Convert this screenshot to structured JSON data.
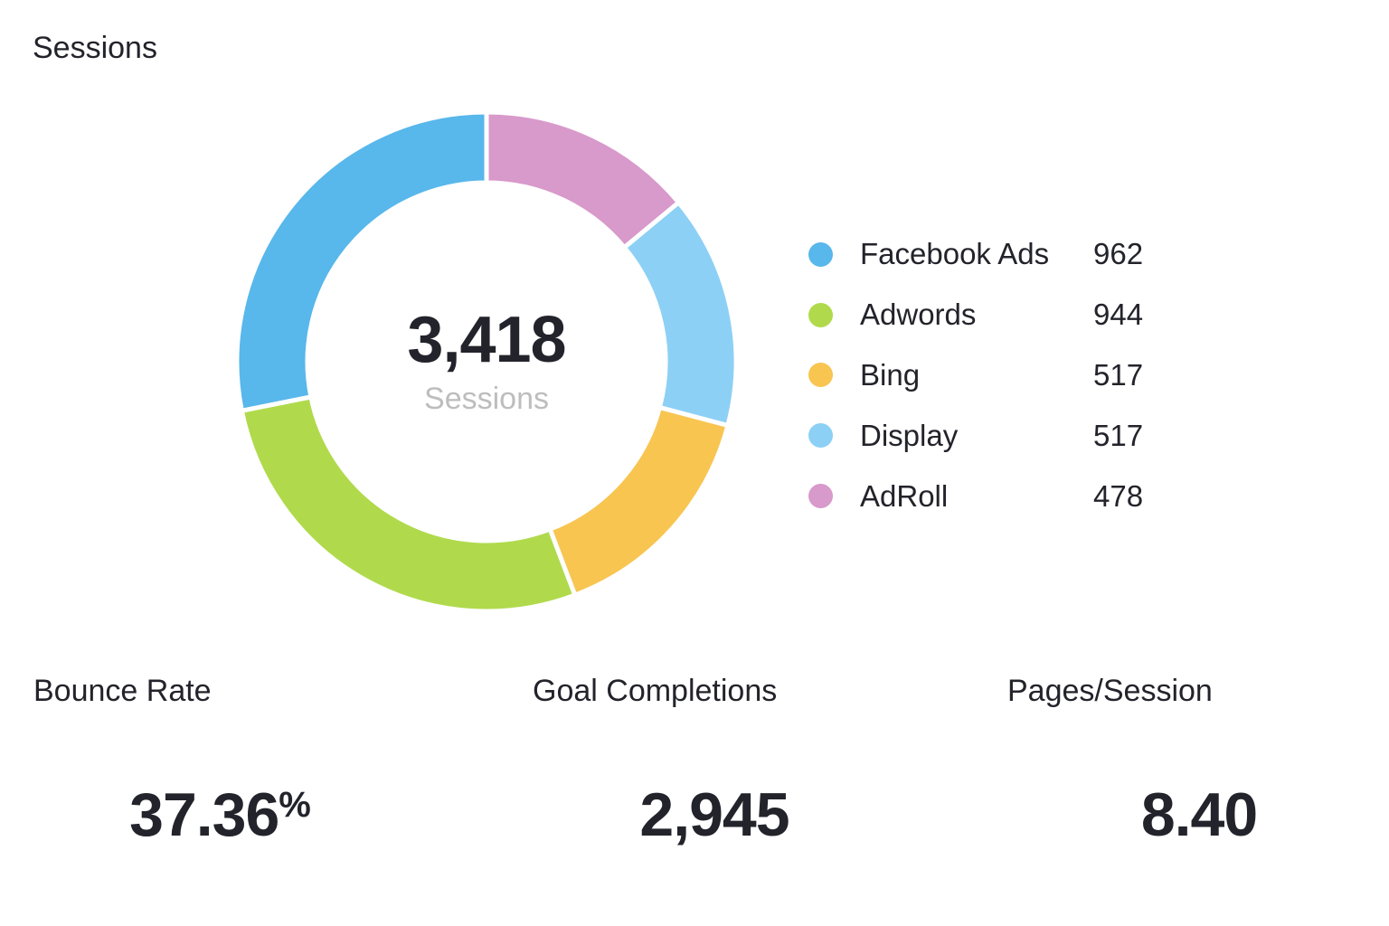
{
  "title": "Sessions",
  "center": {
    "value": "3,418",
    "label": "Sessions"
  },
  "chart_data": {
    "type": "pie",
    "variant": "donut",
    "title": "Sessions",
    "total": 3418,
    "categories": [
      "Facebook Ads",
      "Adwords",
      "Bing",
      "Display",
      "AdRoll"
    ],
    "values": [
      962,
      944,
      517,
      517,
      478
    ],
    "display_values": [
      "962",
      "944",
      "517",
      "517",
      "478"
    ],
    "colors": [
      "#58b7eb",
      "#b0da4c",
      "#f8c551",
      "#8dd0f5",
      "#d899cb"
    ],
    "draw_order": [
      "AdRoll",
      "Display",
      "Bing",
      "Adwords",
      "Facebook Ads"
    ],
    "direction": "clockwise from top",
    "legend_position": "right"
  },
  "metrics": [
    {
      "label": "Bounce Rate",
      "value": "37.36",
      "suffix": "%"
    },
    {
      "label": "Goal Completions",
      "value": "2,945"
    },
    {
      "label": "Pages/Session",
      "value": "8.40"
    }
  ]
}
